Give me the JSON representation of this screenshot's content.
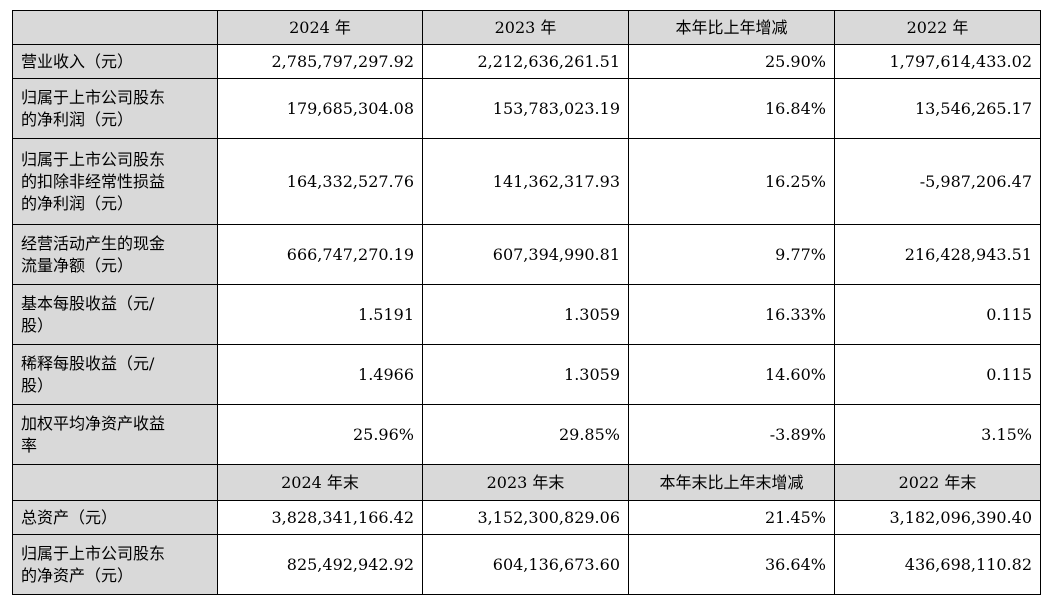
{
  "table": {
    "header1": [
      "2024 年",
      "2023 年",
      "本年比上年增减",
      "2022 年"
    ],
    "section1": [
      {
        "label": [
          "营业收入（元）"
        ],
        "values": [
          "2,785,797,297.92",
          "2,212,636,261.51",
          "25.90%",
          "1,797,614,433.02"
        ]
      },
      {
        "label": [
          "归属于上市公司股东",
          "的净利润（元）"
        ],
        "values": [
          "179,685,304.08",
          "153,783,023.19",
          "16.84%",
          "13,546,265.17"
        ]
      },
      {
        "label": [
          "归属于上市公司股东",
          "的扣除非经常性损益",
          "的净利润（元）"
        ],
        "values": [
          "164,332,527.76",
          "141,362,317.93",
          "16.25%",
          "-5,987,206.47"
        ]
      },
      {
        "label": [
          "经营活动产生的现金",
          "流量净额（元）"
        ],
        "values": [
          "666,747,270.19",
          "607,394,990.81",
          "9.77%",
          "216,428,943.51"
        ]
      },
      {
        "label": [
          "基本每股收益（元/",
          "股）"
        ],
        "values": [
          "1.5191",
          "1.3059",
          "16.33%",
          "0.115"
        ]
      },
      {
        "label": [
          "稀释每股收益（元/",
          "股）"
        ],
        "values": [
          "1.4966",
          "1.3059",
          "14.60%",
          "0.115"
        ]
      },
      {
        "label": [
          "加权平均净资产收益",
          "率"
        ],
        "values": [
          "25.96%",
          "29.85%",
          "-3.89%",
          "3.15%"
        ]
      }
    ],
    "header2": [
      "2024 年末",
      "2023 年末",
      "本年末比上年末增减",
      "2022 年末"
    ],
    "section2": [
      {
        "label": [
          "总资产（元）"
        ],
        "values": [
          "3,828,341,166.42",
          "3,152,300,829.06",
          "21.45%",
          "3,182,096,390.40"
        ]
      },
      {
        "label": [
          "归属于上市公司股东",
          "的净资产（元）"
        ],
        "values": [
          "825,492,942.92",
          "604,136,673.60",
          "36.64%",
          "436,698,110.82"
        ]
      }
    ]
  }
}
